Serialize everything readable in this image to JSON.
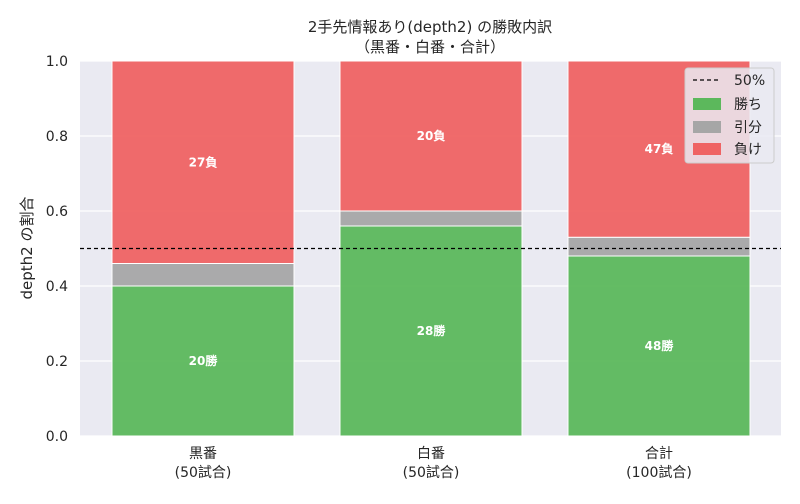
{
  "chart_data": {
    "type": "bar",
    "stacked": true,
    "title_line1": "2手先情報あり(depth2) の勝敗内訳",
    "title_line2": "（黒番・白番・合計）",
    "ylabel": "depth2 の割合",
    "ylim": [
      0,
      1.0
    ],
    "yticks": [
      "0.0",
      "0.2",
      "0.4",
      "0.6",
      "0.8",
      "1.0"
    ],
    "grid": true,
    "legend_position": "top-right",
    "reference_line": {
      "value": 0.5,
      "label": "50%",
      "style": "dashed",
      "color": "#000000"
    },
    "categories": [
      {
        "line1": "黒番",
        "line2": "(50試合)"
      },
      {
        "line1": "白番",
        "line2": "(50試合)"
      },
      {
        "line1": "合計",
        "line2": "(100試合)"
      }
    ],
    "series": [
      {
        "name": "勝ち",
        "color": "#5cb85c",
        "values": [
          0.4,
          0.56,
          0.48
        ],
        "labels": [
          "20勝",
          "28勝",
          "48勝"
        ]
      },
      {
        "name": "引分",
        "color": "#a6a6a6",
        "values": [
          0.06,
          0.04,
          0.05
        ],
        "labels": [
          "",
          "",
          ""
        ]
      },
      {
        "name": "負け",
        "color": "#ef6363",
        "values": [
          0.54,
          0.4,
          0.47
        ],
        "labels": [
          "27負",
          "20負",
          "47負"
        ]
      }
    ]
  }
}
